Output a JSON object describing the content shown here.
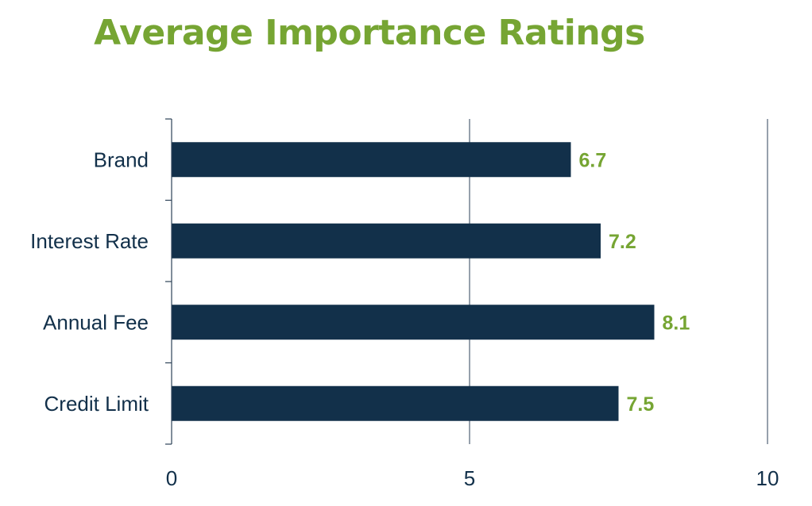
{
  "colors": {
    "title": "#76a533",
    "bar": "#12304a",
    "value_label": "#76a533",
    "axis": "#2d4258",
    "text": "#12304a",
    "background": "#ffffff"
  },
  "chart_data": {
    "type": "bar",
    "orientation": "horizontal",
    "title": "Average Importance Ratings",
    "xlabel": "",
    "ylabel": "",
    "categories": [
      "Brand",
      "Interest Rate",
      "Annual Fee",
      "Credit Limit"
    ],
    "values": [
      6.7,
      7.2,
      8.1,
      7.5
    ],
    "value_labels": [
      "6.7",
      "7.2",
      "8.1",
      "7.5"
    ],
    "xlim": [
      0,
      10
    ],
    "x_ticks": [
      0,
      5,
      10
    ],
    "x_tick_labels": [
      "0",
      "5",
      "10"
    ],
    "grid": true,
    "legend": "none"
  }
}
